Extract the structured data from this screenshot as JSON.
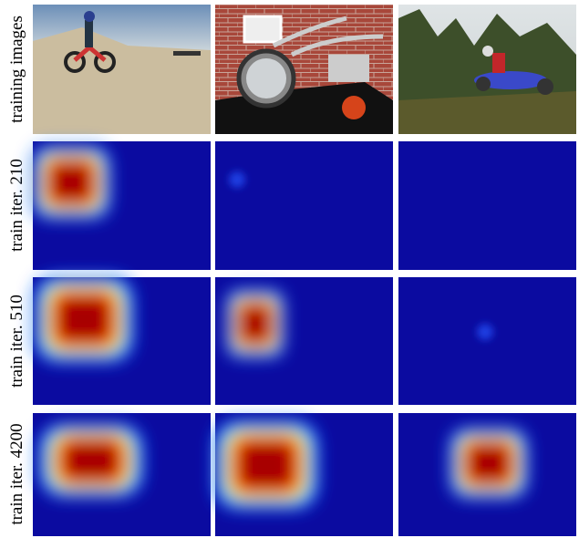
{
  "row_labels": [
    "training images",
    "train iter. 210",
    "train iter. 510",
    "train iter. 4200"
  ]
}
